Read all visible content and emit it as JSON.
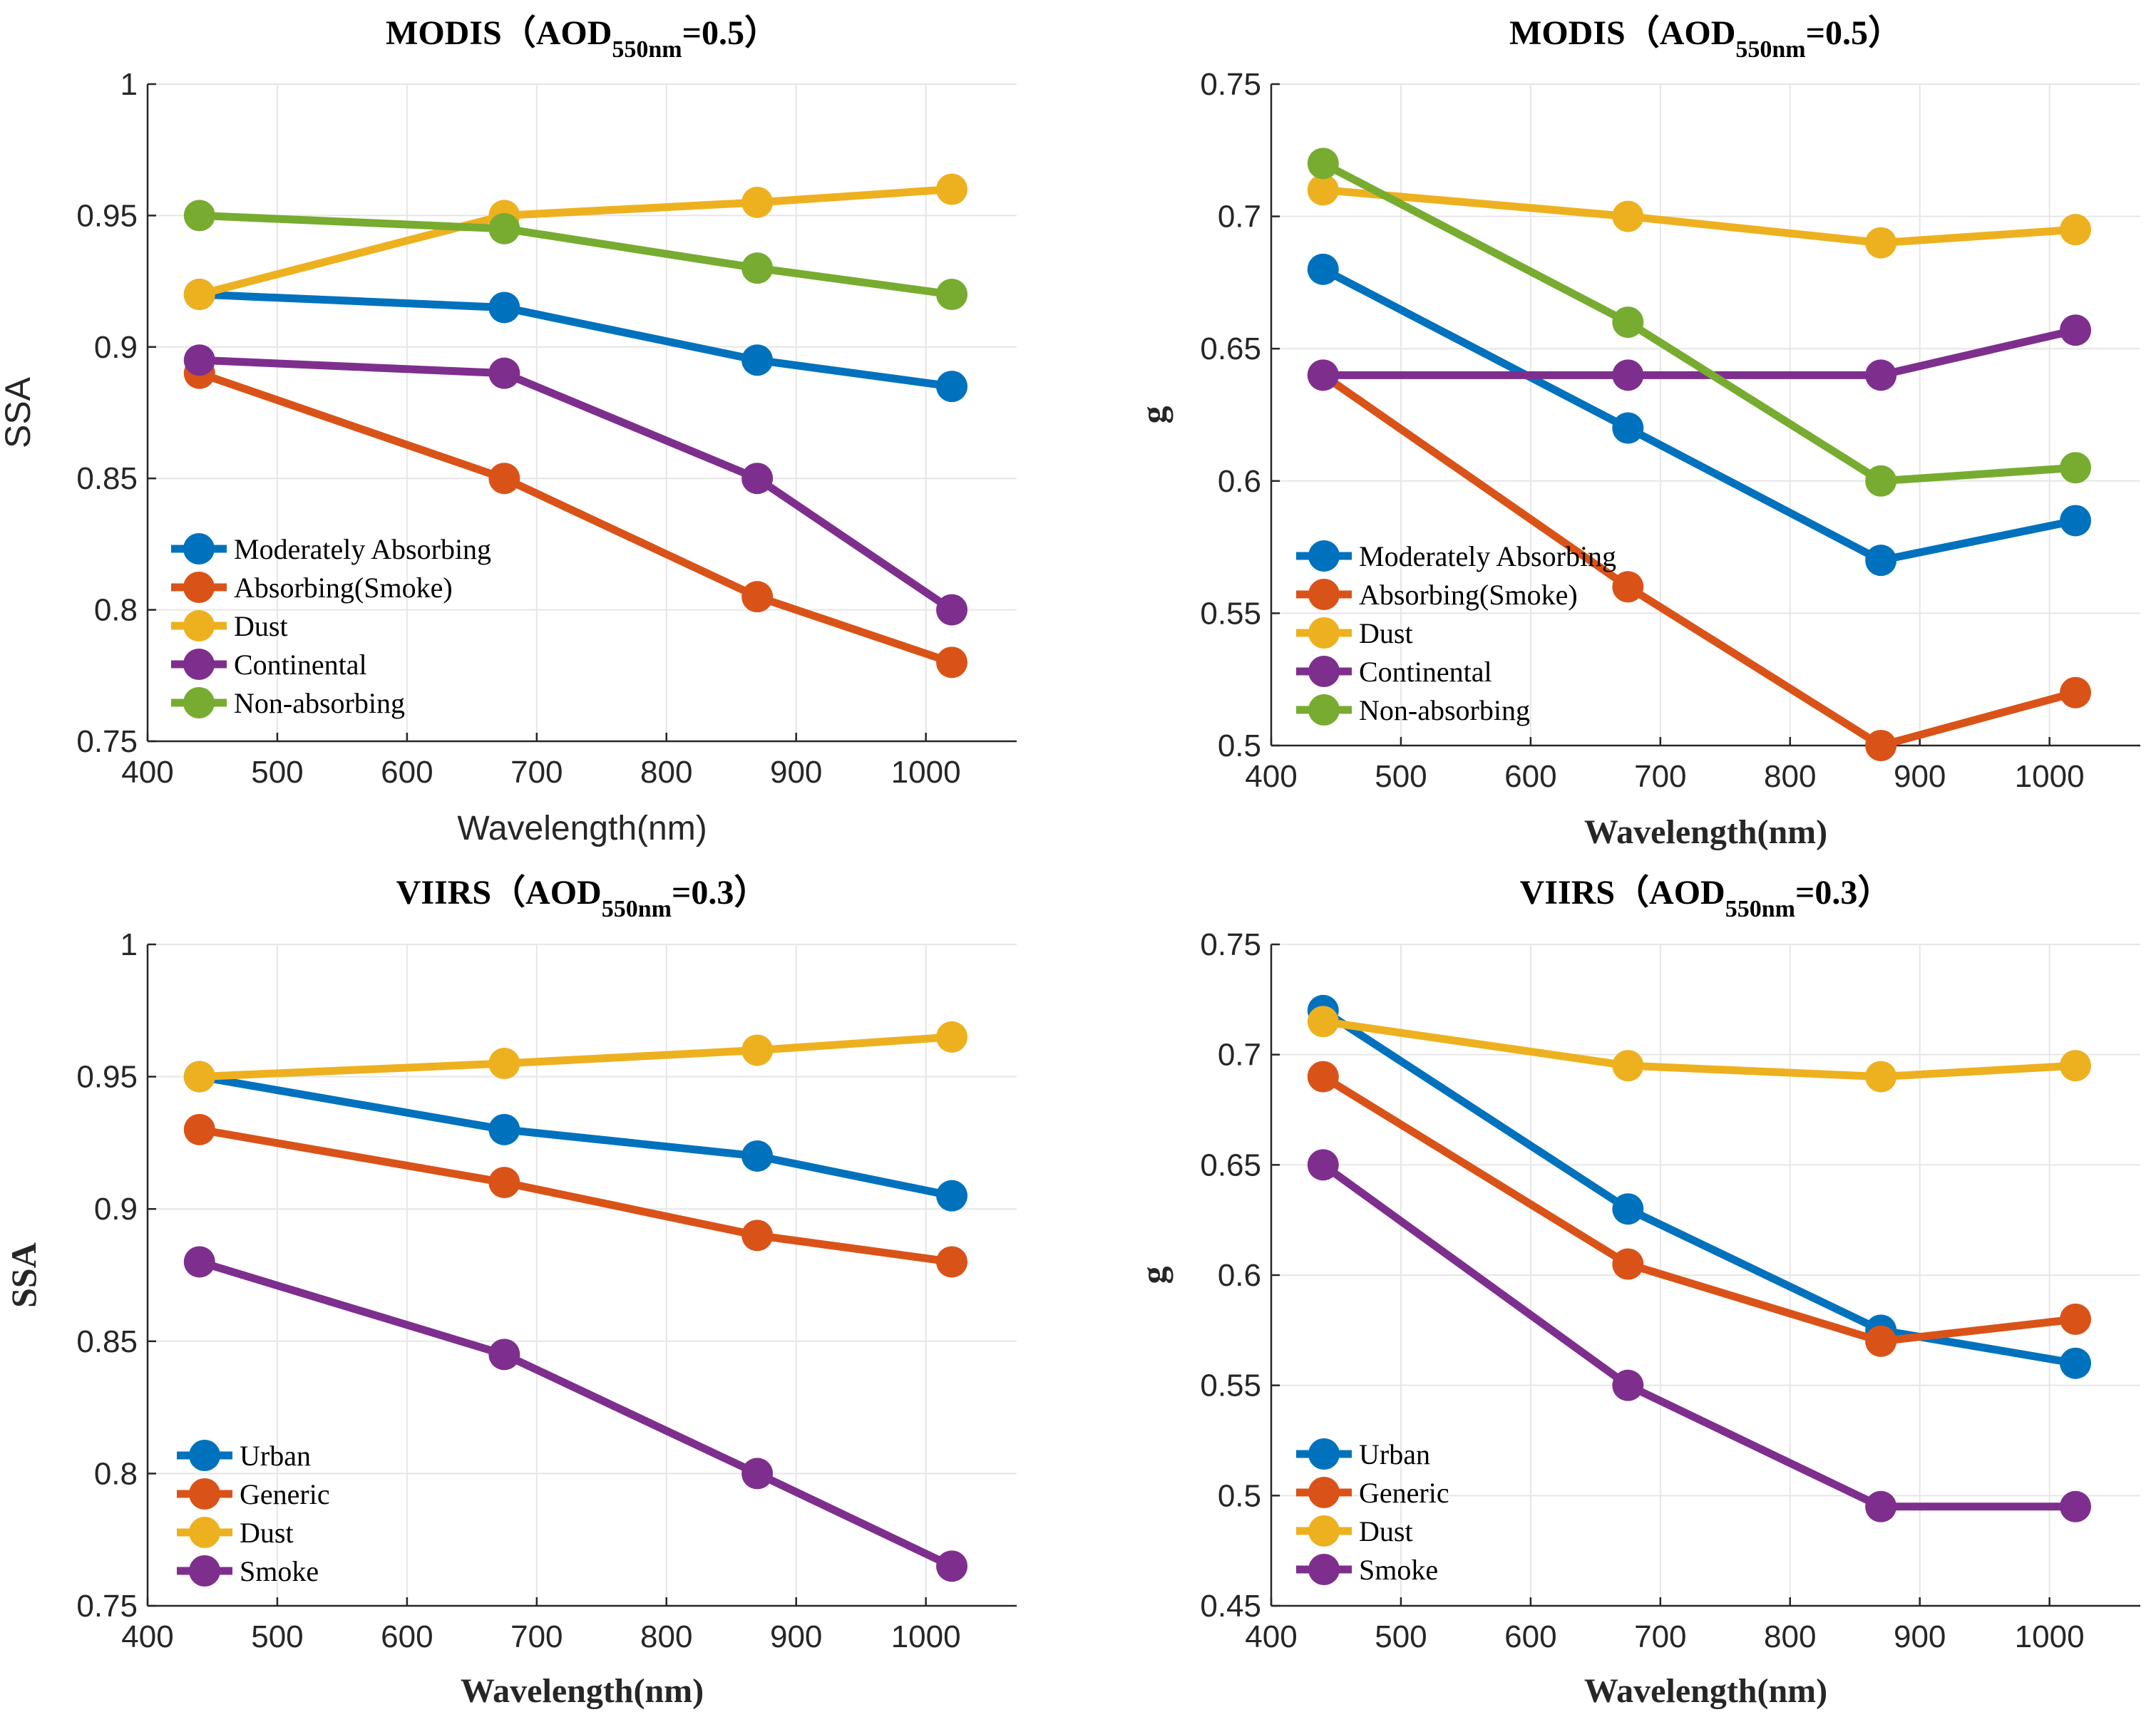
{
  "colors": {
    "blue": "#0072BD",
    "orange": "#D95319",
    "yellow": "#EDB120",
    "purple": "#7E2F8E",
    "green": "#77AC30"
  },
  "chart_data": [
    {
      "type": "line",
      "title_main": "MODIS（AOD",
      "title_sub": "550nm",
      "title_end": "=0.5）",
      "xlabel": "Wavelength(nm)",
      "ylabel": "SSA",
      "xlim": [
        400,
        1070
      ],
      "ylim": [
        0.75,
        1
      ],
      "xticks": [
        400,
        500,
        600,
        700,
        800,
        900,
        1000
      ],
      "yticks": [
        0.75,
        0.8,
        0.85,
        0.9,
        0.95,
        1
      ],
      "ytick_labels": [
        "0.75",
        "0.8",
        "0.85",
        "0.9",
        "0.95",
        "1"
      ],
      "x": [
        440,
        675,
        870,
        1020
      ],
      "legend_position": "bottom-left",
      "series": [
        {
          "name": "Moderately Absorbing",
          "color": "#0072BD",
          "values": [
            0.92,
            0.915,
            0.895,
            0.885
          ]
        },
        {
          "name": "Absorbing(Smoke)",
          "color": "#D95319",
          "values": [
            0.89,
            0.85,
            0.805,
            0.78
          ]
        },
        {
          "name": "Dust",
          "color": "#EDB120",
          "values": [
            0.92,
            0.95,
            0.955,
            0.96
          ]
        },
        {
          "name": "Continental",
          "color": "#7E2F8E",
          "values": [
            0.895,
            0.89,
            0.85,
            0.8
          ]
        },
        {
          "name": "Non-absorbing",
          "color": "#77AC30",
          "values": [
            0.95,
            0.945,
            0.93,
            0.92
          ]
        }
      ]
    },
    {
      "type": "line",
      "title_main": "MODIS（AOD",
      "title_sub": "550nm",
      "title_end": "=0.5）",
      "xlabel": "Wavelength(nm)",
      "ylabel": "g",
      "xlim": [
        400,
        1070
      ],
      "ylim": [
        0.5,
        0.75
      ],
      "xticks": [
        400,
        500,
        600,
        700,
        800,
        900,
        1000
      ],
      "yticks": [
        0.5,
        0.55,
        0.6,
        0.65,
        0.7,
        0.75
      ],
      "ytick_labels": [
        "0.5",
        "0.55",
        "0.6",
        "0.65",
        "0.7",
        "0.75"
      ],
      "x": [
        440,
        675,
        870,
        1020
      ],
      "legend_position": "bottom-left",
      "series": [
        {
          "name": "Moderately Absorbing",
          "color": "#0072BD",
          "values": [
            0.68,
            0.62,
            0.57,
            0.585
          ]
        },
        {
          "name": "Absorbing(Smoke)",
          "color": "#D95319",
          "values": [
            0.64,
            0.56,
            0.5,
            0.52
          ]
        },
        {
          "name": "Dust",
          "color": "#EDB120",
          "values": [
            0.71,
            0.7,
            0.69,
            0.695
          ]
        },
        {
          "name": "Continental",
          "color": "#7E2F8E",
          "values": [
            0.64,
            0.64,
            0.64,
            0.657
          ]
        },
        {
          "name": "Non-absorbing",
          "color": "#77AC30",
          "values": [
            0.72,
            0.66,
            0.6,
            0.605
          ]
        }
      ]
    },
    {
      "type": "line",
      "title_main": "VIIRS（AOD",
      "title_sub": "550nm",
      "title_end": "=0.3）",
      "xlabel": "Wavelength(nm)",
      "ylabel": "SSA",
      "xlim": [
        400,
        1070
      ],
      "ylim": [
        0.75,
        1
      ],
      "xticks": [
        400,
        500,
        600,
        700,
        800,
        900,
        1000
      ],
      "yticks": [
        0.75,
        0.8,
        0.85,
        0.9,
        0.95,
        1
      ],
      "ytick_labels": [
        "0.75",
        "0.8",
        "0.85",
        "0.9",
        "0.95",
        "1"
      ],
      "x": [
        440,
        675,
        870,
        1020
      ],
      "legend_position": "bottom-left",
      "series": [
        {
          "name": "Urban",
          "color": "#0072BD",
          "values": [
            0.95,
            0.93,
            0.92,
            0.905
          ]
        },
        {
          "name": "Generic",
          "color": "#D95319",
          "values": [
            0.93,
            0.91,
            0.89,
            0.88
          ]
        },
        {
          "name": "Dust",
          "color": "#EDB120",
          "values": [
            0.95,
            0.955,
            0.96,
            0.965
          ]
        },
        {
          "name": "Smoke",
          "color": "#7E2F8E",
          "values": [
            0.88,
            0.845,
            0.8,
            0.765
          ]
        }
      ]
    },
    {
      "type": "line",
      "title_main": "VIIRS（AOD",
      "title_sub": "550nm",
      "title_end": "=0.3）",
      "xlabel": "Wavelength(nm)",
      "ylabel": "g",
      "xlim": [
        400,
        1070
      ],
      "ylim": [
        0.45,
        0.75
      ],
      "xticks": [
        400,
        500,
        600,
        700,
        800,
        900,
        1000
      ],
      "yticks": [
        0.45,
        0.5,
        0.55,
        0.6,
        0.65,
        0.7,
        0.75
      ],
      "ytick_labels": [
        "0.45",
        "0.5",
        "0.55",
        "0.6",
        "0.65",
        "0.7",
        "0.75"
      ],
      "x": [
        440,
        675,
        870,
        1020
      ],
      "legend_position": "bottom-left",
      "series": [
        {
          "name": "Urban",
          "color": "#0072BD",
          "values": [
            0.72,
            0.63,
            0.575,
            0.56
          ]
        },
        {
          "name": "Generic",
          "color": "#D95319",
          "values": [
            0.69,
            0.605,
            0.57,
            0.58
          ]
        },
        {
          "name": "Dust",
          "color": "#EDB120",
          "values": [
            0.715,
            0.695,
            0.69,
            0.695
          ]
        },
        {
          "name": "Smoke",
          "color": "#7E2F8E",
          "values": [
            0.65,
            0.55,
            0.495,
            0.495
          ]
        }
      ]
    }
  ]
}
